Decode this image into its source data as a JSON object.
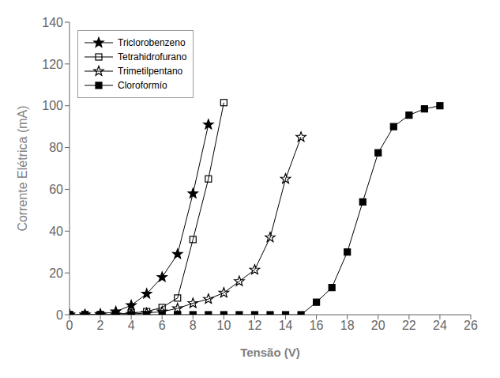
{
  "chart_data": {
    "type": "line",
    "xlabel": "Tensão (V)",
    "ylabel": "Corrente Elétrica (mA)",
    "xlim": [
      0,
      26
    ],
    "ylim": [
      0,
      140
    ],
    "xticks": [
      0,
      2,
      4,
      6,
      8,
      10,
      12,
      14,
      16,
      18,
      20,
      22,
      24,
      26
    ],
    "yticks": [
      0,
      20,
      40,
      60,
      80,
      100,
      120,
      140
    ],
    "grid": false,
    "legend": "upper left",
    "series": [
      {
        "name": "Triclorobenzeno",
        "color": "#000000",
        "marker": "star",
        "x": [
          0,
          1,
          2,
          3,
          4,
          5,
          6,
          7,
          8,
          9
        ],
        "values": [
          0,
          0,
          0.3,
          1.5,
          4.5,
          10.0,
          18.0,
          29.0,
          58.0,
          91.0
        ]
      },
      {
        "name": "Tetrahidrofurano",
        "color": "#000000",
        "marker": "square-open",
        "x": [
          0,
          1,
          2,
          3,
          4,
          5,
          6,
          7,
          8,
          9,
          10
        ],
        "values": [
          0,
          0,
          0,
          0.3,
          0.8,
          1.5,
          3.5,
          8.0,
          36.0,
          65.0,
          101.5
        ]
      },
      {
        "name": "Trimetilpentano",
        "color": "#000000",
        "marker": "star-open",
        "x": [
          0,
          1,
          2,
          3,
          4,
          5,
          6,
          7,
          8,
          9,
          10,
          11,
          12,
          13,
          14,
          15
        ],
        "values": [
          0,
          0,
          0,
          0,
          0.3,
          0.8,
          1.5,
          3.0,
          5.5,
          7.5,
          10.5,
          16.0,
          21.5,
          37.0,
          65.0,
          85.0
        ]
      },
      {
        "name": "Cloroformío",
        "color": "#000000",
        "marker": "square",
        "x": [
          0,
          1,
          2,
          3,
          4,
          5,
          6,
          7,
          8,
          9,
          10,
          11,
          12,
          13,
          14,
          15,
          16,
          17,
          18,
          19,
          20,
          21,
          22,
          23,
          24
        ],
        "values": [
          0,
          0,
          0,
          0,
          0,
          0,
          0,
          0,
          0,
          0,
          0,
          0,
          0,
          0,
          0,
          0,
          6.0,
          13.0,
          30.0,
          54.0,
          77.5,
          90.0,
          95.5,
          98.5,
          100.0
        ]
      }
    ]
  }
}
